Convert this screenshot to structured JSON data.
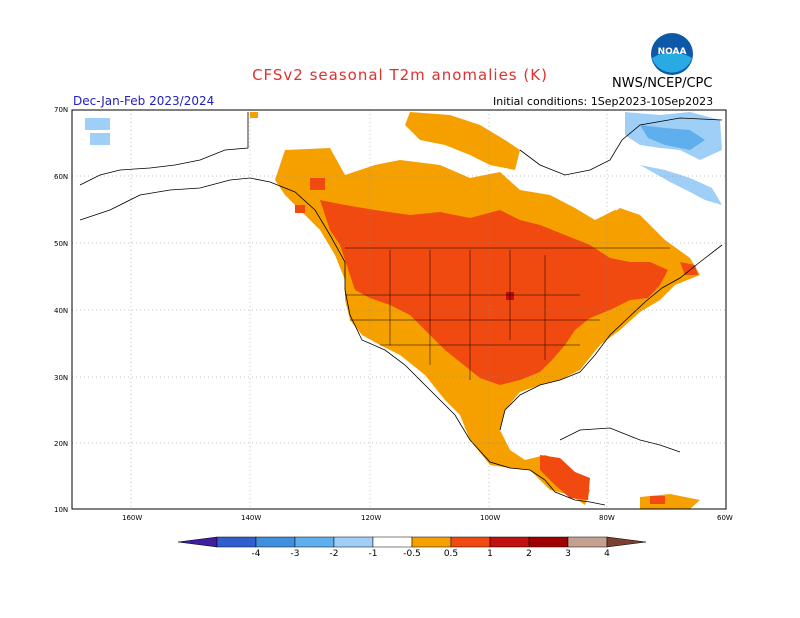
{
  "header": {
    "title": "CFSv2 seasonal T2m anomalies (K)",
    "season": "Dec-Jan-Feb 2023/2024",
    "init": "Initial conditions: 1Sep2023-10Sep2023",
    "org": "NWS/NCEP/CPC",
    "logo_text": "NOAA"
  },
  "axes": {
    "lat_labels": [
      "70N",
      "60N",
      "50N",
      "40N",
      "30N",
      "20N",
      "10N"
    ],
    "lon_labels": [
      "160W",
      "140W",
      "120W",
      "100W",
      "80W",
      "60W"
    ]
  },
  "colorbar": {
    "labels": [
      "-4",
      "-3",
      "-2",
      "-1",
      "-0.5",
      "0.5",
      "1",
      "2",
      "3",
      "4"
    ],
    "colors": [
      "#3f1f9f",
      "#2f5fcf",
      "#3f8fdf",
      "#5fafef",
      "#9fcff7",
      "#ffffff",
      "#f6a000",
      "#f04a10",
      "#c01010",
      "#a00000",
      "#c4a090",
      "#7a4030"
    ]
  }
}
